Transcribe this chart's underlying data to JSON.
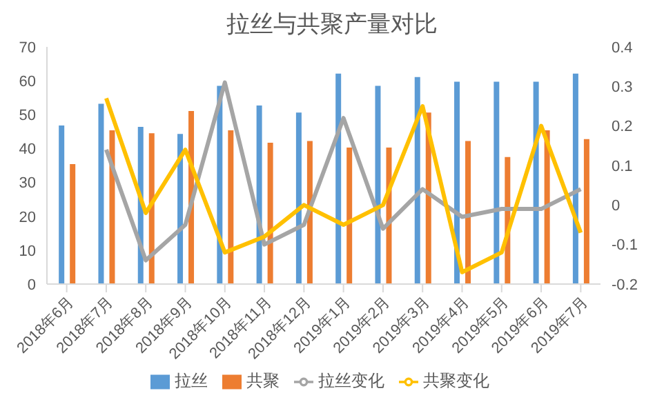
{
  "chart_data": {
    "type": "bar",
    "title": "拉丝与共聚产量对比",
    "categories": [
      "2018年6月",
      "2018年7月",
      "2018年8月",
      "2018年9月",
      "2018年10月",
      "2018年11月",
      "2018年12月",
      "2019年1月",
      "2019年2月",
      "2019年3月",
      "2019年4月",
      "2019年5月",
      "2019年6月",
      "2019年7月"
    ],
    "series": [
      {
        "name": "拉丝",
        "color": "#5b9bd5",
        "values": [
          46.8,
          53.2,
          46.4,
          44.3,
          58.5,
          52.7,
          50.6,
          62.1,
          58.5,
          61.1,
          59.7,
          59.7,
          59.7,
          62.1
        ]
      },
      {
        "name": "共聚",
        "color": "#ed7d31",
        "values": [
          35.4,
          45.4,
          44.5,
          51.1,
          45.4,
          41.7,
          42.2,
          40.3,
          40.3,
          50.6,
          42.2,
          37.5,
          45.4,
          42.8
        ]
      },
      {
        "name": "拉丝变化",
        "type": "line",
        "axis": "y2",
        "color": "#a5a5a5",
        "values": [
          null,
          0.14,
          -0.14,
          -0.05,
          0.31,
          -0.1,
          -0.05,
          0.22,
          -0.06,
          0.04,
          -0.03,
          -0.01,
          -0.01,
          0.04
        ]
      },
      {
        "name": "共聚变化",
        "type": "line",
        "axis": "y2",
        "color": "#ffc000",
        "values": [
          null,
          0.27,
          -0.02,
          0.14,
          -0.12,
          -0.08,
          0.0,
          -0.05,
          0.0,
          0.25,
          -0.17,
          -0.12,
          0.2,
          -0.07
        ]
      }
    ],
    "ylim": [
      0,
      70
    ],
    "yticks": [
      0,
      10,
      20,
      30,
      40,
      50,
      60,
      70
    ],
    "y2lim": [
      -0.2,
      0.4
    ],
    "y2ticks": [
      -0.2,
      -0.1,
      0,
      0.1,
      0.2,
      0.3,
      0.4
    ],
    "grid": false,
    "legend": "bottom",
    "marker": "none",
    "line_style": "solid"
  }
}
